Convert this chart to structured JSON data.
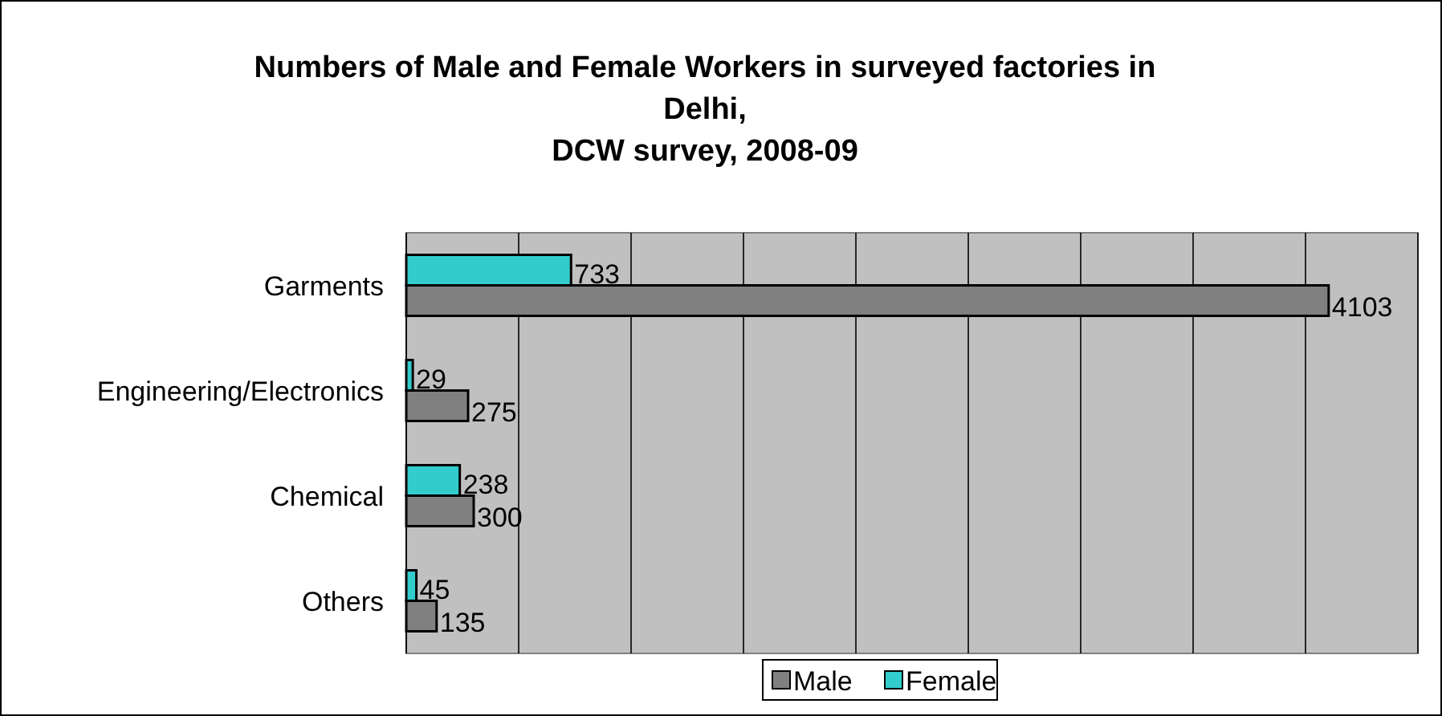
{
  "chart_data": {
    "type": "bar",
    "orientation": "horizontal",
    "title": "Numbers of Male and Female Workers in surveyed factories in Delhi,\nDCW survey, 2008-09",
    "categories": [
      "Garments",
      "Engineering/Electronics",
      "Chemical",
      "Others"
    ],
    "series": [
      {
        "name": "Male",
        "color": "#808080",
        "values": [
          4103,
          275,
          300,
          135
        ]
      },
      {
        "name": "Female",
        "color": "#33cccc",
        "values": [
          733,
          29,
          238,
          45
        ]
      }
    ],
    "xlim": [
      0,
      4500
    ],
    "xticks": [
      {
        "value": 0,
        "label": null
      },
      {
        "value": 500,
        "label": null
      },
      {
        "value": 1000,
        "label": null
      },
      {
        "value": 1500,
        "label": null
      },
      {
        "value": 2000,
        "label": null
      },
      {
        "value": 2500,
        "label": null
      },
      {
        "value": 3000,
        "label": null
      },
      {
        "value": 3500,
        "label": null
      },
      {
        "value": 4000,
        "label": null
      },
      {
        "value": 4500,
        "label": null
      }
    ],
    "tick_labels": "y",
    "grid": "x",
    "data_labels": true,
    "legend": "bottom"
  }
}
